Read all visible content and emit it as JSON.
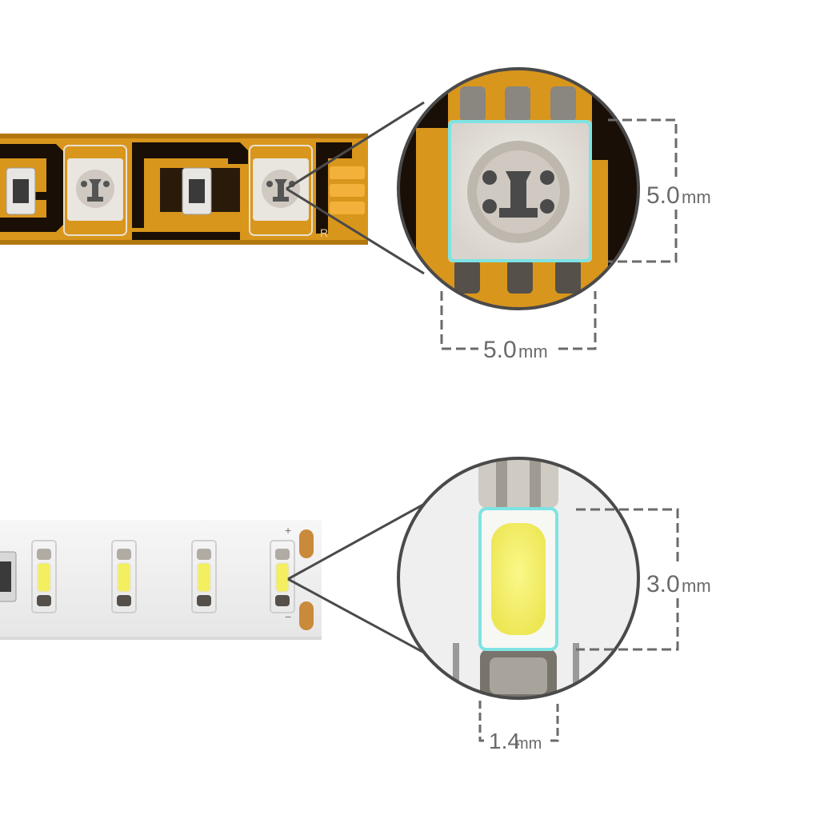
{
  "figure": {
    "strip_5050": {
      "height_label": {
        "value": "5.0",
        "unit": "mm"
      },
      "width_label": {
        "value": "5.0",
        "unit": "mm"
      },
      "pad_labels": [
        "",
        "",
        "R"
      ]
    },
    "strip_3014": {
      "height_label": {
        "value": "3.0",
        "unit": "mm"
      },
      "width_label": {
        "value": "1.4",
        "unit": "mm"
      },
      "polarity": {
        "plus": "+",
        "minus": "−"
      }
    },
    "colors": {
      "pcb_amber": "#d9961c",
      "pcb_dark": "#1a0f06",
      "pcb_white": "#f2f2f2",
      "highlight": "#7fe3e3",
      "dimension": "#6a6a6a",
      "lens_border": "#4a4a4a",
      "led_yellow": "#f3ef60"
    },
    "icons": [
      "magnifier-lens",
      "dimension-bracket"
    ]
  }
}
